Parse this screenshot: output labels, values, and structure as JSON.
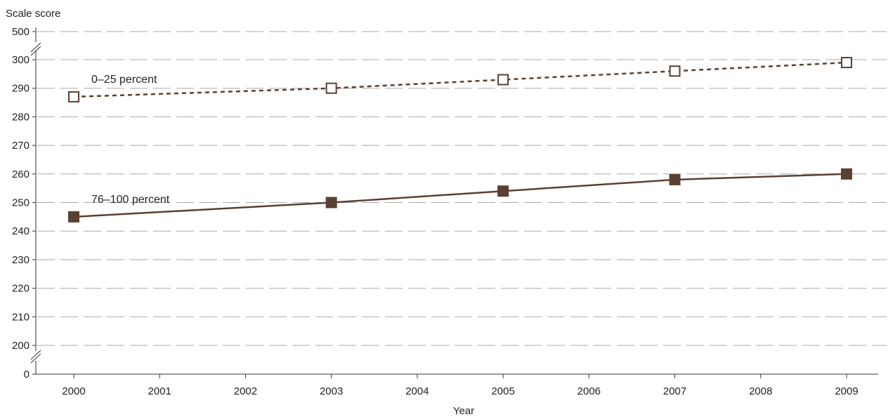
{
  "chart_data": {
    "type": "line",
    "title": "",
    "ylabel": "Scale score",
    "xlabel": "Year",
    "x_ticks": [
      "2000",
      "2001",
      "2002",
      "2003",
      "2004",
      "2005",
      "2006",
      "2007",
      "2008",
      "2009"
    ],
    "y_ticks": [
      "0",
      "200",
      "210",
      "220",
      "230",
      "240",
      "250",
      "260",
      "270",
      "280",
      "290",
      "300",
      "500"
    ],
    "y_axis_break": true,
    "grid": "horizontal dashed",
    "series": [
      {
        "name": "0–25 percent",
        "x": [
          2000,
          2003,
          2005,
          2007,
          2009
        ],
        "values": [
          287,
          290,
          293,
          296,
          299
        ],
        "line_style": "dashed",
        "marker": "open square",
        "color": "#5a4032"
      },
      {
        "name": "76–100 percent",
        "x": [
          2000,
          2003,
          2005,
          2007,
          2009
        ],
        "values": [
          245,
          250,
          254,
          258,
          260
        ],
        "line_style": "solid",
        "marker": "filled square",
        "color": "#5a4032"
      }
    ]
  }
}
